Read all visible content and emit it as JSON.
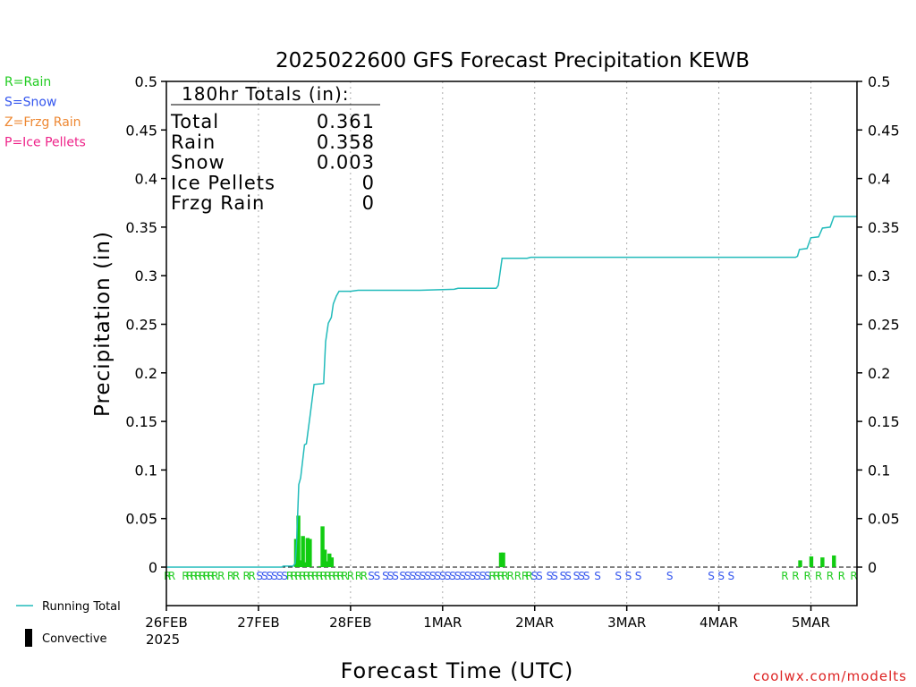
{
  "chart_data": {
    "type": "bar",
    "title": "2025022600 GFS Forecast Precipitation KEWB",
    "xlabel": "Forecast Time (UTC)",
    "ylabel": "Precipitation (in)",
    "ylim": [
      0,
      0.5
    ],
    "y_ticks": [
      "0",
      "0.05",
      "0.1",
      "0.15",
      "0.2",
      "0.25",
      "0.3",
      "0.35",
      "0.4",
      "0.45",
      "0.5"
    ],
    "x_range_hours": [
      0,
      180
    ],
    "x_ticks": [
      {
        "hour": 0,
        "label": "26FEB"
      },
      {
        "hour": 24,
        "label": "27FEB"
      },
      {
        "hour": 48,
        "label": "28FEB"
      },
      {
        "hour": 72,
        "label": "1MAR"
      },
      {
        "hour": 96,
        "label": "2MAR"
      },
      {
        "hour": 120,
        "label": "3MAR"
      },
      {
        "hour": 144,
        "label": "4MAR"
      },
      {
        "hour": 168,
        "label": "5MAR"
      }
    ],
    "year_label": "2025",
    "grid": true,
    "legend_position": "left",
    "ptype_legend": [
      {
        "text": "R=Rain",
        "color": "#22cc22"
      },
      {
        "text": "S=Snow",
        "color": "#3355ee"
      },
      {
        "text": "Z=Frzg Rain",
        "color": "#ee8833"
      },
      {
        "text": "P=Ice Pellets",
        "color": "#ee2288"
      }
    ],
    "series": [
      {
        "name": "Running Total",
        "type": "line",
        "color": "#22bbbb",
        "points": [
          [
            0,
            0
          ],
          [
            30,
            0
          ],
          [
            30.5,
            0.001
          ],
          [
            33,
            0.001
          ],
          [
            33.6,
            0.004
          ],
          [
            34,
            0.03
          ],
          [
            34.5,
            0.085
          ],
          [
            35,
            0.092
          ],
          [
            36,
            0.126
          ],
          [
            36.5,
            0.127
          ],
          [
            37.5,
            0.157
          ],
          [
            38.5,
            0.188
          ],
          [
            41,
            0.189
          ],
          [
            41.5,
            0.232
          ],
          [
            42.2,
            0.251
          ],
          [
            43,
            0.257
          ],
          [
            43.5,
            0.271
          ],
          [
            44.3,
            0.279
          ],
          [
            45,
            0.284
          ],
          [
            48,
            0.284
          ],
          [
            50,
            0.285
          ],
          [
            57,
            0.285
          ],
          [
            66,
            0.285
          ],
          [
            75,
            0.286
          ],
          [
            76,
            0.287
          ],
          [
            86,
            0.287
          ],
          [
            86.5,
            0.29
          ],
          [
            87.5,
            0.318
          ],
          [
            94,
            0.318
          ],
          [
            95,
            0.319
          ],
          [
            160,
            0.319
          ],
          [
            164,
            0.319
          ],
          [
            164.5,
            0.32
          ],
          [
            165,
            0.327
          ],
          [
            167,
            0.328
          ],
          [
            168,
            0.339
          ],
          [
            170,
            0.34
          ],
          [
            171,
            0.349
          ],
          [
            173,
            0.35
          ],
          [
            174,
            0.361
          ],
          [
            180,
            0.361
          ]
        ]
      },
      {
        "name": "Convective",
        "type": "bar",
        "color": "#000000",
        "values": []
      },
      {
        "name": "Precipitation",
        "type": "bar",
        "color": "#11cc11",
        "bars": [
          {
            "hour": 33.8,
            "value": 0.029
          },
          {
            "hour": 34.4,
            "value": 0.053
          },
          {
            "hour": 35.0,
            "value": 0.007
          },
          {
            "hour": 35.6,
            "value": 0.032
          },
          {
            "hour": 36.2,
            "value": 0.005
          },
          {
            "hour": 36.8,
            "value": 0.03
          },
          {
            "hour": 37.4,
            "value": 0.029
          },
          {
            "hour": 40.1,
            "value": 0.001
          },
          {
            "hour": 40.7,
            "value": 0.042
          },
          {
            "hour": 41.3,
            "value": 0.018
          },
          {
            "hour": 41.9,
            "value": 0.006
          },
          {
            "hour": 42.5,
            "value": 0.014
          },
          {
            "hour": 43.1,
            "value": 0.01
          },
          {
            "hour": 87.2,
            "value": 0.015
          },
          {
            "hour": 87.8,
            "value": 0.015
          },
          {
            "hour": 165.2,
            "value": 0.007
          },
          {
            "hour": 168.1,
            "value": 0.011
          },
          {
            "hour": 171.0,
            "value": 0.01
          },
          {
            "hour": 174.0,
            "value": 0.012
          }
        ]
      }
    ],
    "ptype_markers": [
      {
        "hour": 0.3,
        "type": "R"
      },
      {
        "hour": 1.4,
        "type": "R"
      },
      {
        "hour": 5.0,
        "type": "R"
      },
      {
        "hour": 6.1,
        "type": "R"
      },
      {
        "hour": 7.2,
        "type": "R"
      },
      {
        "hour": 8.3,
        "type": "R"
      },
      {
        "hour": 9.4,
        "type": "R"
      },
      {
        "hour": 10.5,
        "type": "R"
      },
      {
        "hour": 11.6,
        "type": "R"
      },
      {
        "hour": 12.7,
        "type": "R"
      },
      {
        "hour": 14.3,
        "type": "R"
      },
      {
        "hour": 16.8,
        "type": "R"
      },
      {
        "hour": 18.2,
        "type": "R"
      },
      {
        "hour": 20.9,
        "type": "R"
      },
      {
        "hour": 22.3,
        "type": "R"
      },
      {
        "hour": 24.3,
        "type": "S"
      },
      {
        "hour": 25.6,
        "type": "S"
      },
      {
        "hour": 26.9,
        "type": "S"
      },
      {
        "hour": 28.2,
        "type": "S"
      },
      {
        "hour": 29.5,
        "type": "S"
      },
      {
        "hour": 30.8,
        "type": "S"
      },
      {
        "hour": 32.2,
        "type": "R"
      },
      {
        "hour": 33.3,
        "type": "R"
      },
      {
        "hour": 34.4,
        "type": "R"
      },
      {
        "hour": 35.5,
        "type": "R"
      },
      {
        "hour": 36.6,
        "type": "R"
      },
      {
        "hour": 37.7,
        "type": "R"
      },
      {
        "hour": 38.8,
        "type": "R"
      },
      {
        "hour": 39.9,
        "type": "R"
      },
      {
        "hour": 41.0,
        "type": "R"
      },
      {
        "hour": 42.1,
        "type": "R"
      },
      {
        "hour": 43.2,
        "type": "R"
      },
      {
        "hour": 44.3,
        "type": "R"
      },
      {
        "hour": 45.4,
        "type": "R"
      },
      {
        "hour": 46.5,
        "type": "R"
      },
      {
        "hour": 48.0,
        "type": "R"
      },
      {
        "hour": 50.1,
        "type": "R"
      },
      {
        "hour": 51.5,
        "type": "R"
      },
      {
        "hour": 53.4,
        "type": "S"
      },
      {
        "hour": 54.9,
        "type": "S"
      },
      {
        "hour": 57.1,
        "type": "S"
      },
      {
        "hour": 58.4,
        "type": "S"
      },
      {
        "hour": 59.7,
        "type": "S"
      },
      {
        "hour": 61.6,
        "type": "S"
      },
      {
        "hour": 62.9,
        "type": "S"
      },
      {
        "hour": 64.2,
        "type": "S"
      },
      {
        "hour": 65.5,
        "type": "S"
      },
      {
        "hour": 66.8,
        "type": "S"
      },
      {
        "hour": 68.1,
        "type": "S"
      },
      {
        "hour": 69.4,
        "type": "S"
      },
      {
        "hour": 70.7,
        "type": "S"
      },
      {
        "hour": 72.0,
        "type": "S"
      },
      {
        "hour": 73.3,
        "type": "S"
      },
      {
        "hour": 74.6,
        "type": "S"
      },
      {
        "hour": 75.9,
        "type": "S"
      },
      {
        "hour": 77.2,
        "type": "S"
      },
      {
        "hour": 78.5,
        "type": "S"
      },
      {
        "hour": 79.8,
        "type": "S"
      },
      {
        "hour": 81.1,
        "type": "S"
      },
      {
        "hour": 82.4,
        "type": "S"
      },
      {
        "hour": 83.7,
        "type": "S"
      },
      {
        "hour": 85.0,
        "type": "R"
      },
      {
        "hour": 86.1,
        "type": "R"
      },
      {
        "hour": 87.2,
        "type": "R"
      },
      {
        "hour": 88.3,
        "type": "R"
      },
      {
        "hour": 89.7,
        "type": "R"
      },
      {
        "hour": 91.6,
        "type": "R"
      },
      {
        "hour": 93.5,
        "type": "R"
      },
      {
        "hour": 94.6,
        "type": "R"
      },
      {
        "hour": 95.9,
        "type": "S"
      },
      {
        "hour": 97.2,
        "type": "S"
      },
      {
        "hour": 99.9,
        "type": "S"
      },
      {
        "hour": 101.2,
        "type": "S"
      },
      {
        "hour": 103.4,
        "type": "S"
      },
      {
        "hour": 104.7,
        "type": "S"
      },
      {
        "hour": 106.9,
        "type": "S"
      },
      {
        "hour": 108.2,
        "type": "S"
      },
      {
        "hour": 109.5,
        "type": "S"
      },
      {
        "hour": 112.4,
        "type": "S"
      },
      {
        "hour": 117.8,
        "type": "S"
      },
      {
        "hour": 120.4,
        "type": "S"
      },
      {
        "hour": 123.0,
        "type": "S"
      },
      {
        "hour": 131.2,
        "type": "S"
      },
      {
        "hour": 142.0,
        "type": "S"
      },
      {
        "hour": 144.6,
        "type": "S"
      },
      {
        "hour": 147.2,
        "type": "S"
      },
      {
        "hour": 161.2,
        "type": "R"
      },
      {
        "hour": 164.0,
        "type": "R"
      },
      {
        "hour": 167.1,
        "type": "R"
      },
      {
        "hour": 170.0,
        "type": "R"
      },
      {
        "hour": 173.0,
        "type": "R"
      },
      {
        "hour": 176.0,
        "type": "R"
      },
      {
        "hour": 179.2,
        "type": "R"
      }
    ],
    "totals_box": {
      "heading": "180hr Totals (in):",
      "rows": [
        {
          "label": "Total",
          "value": "0.361"
        },
        {
          "label": "Rain",
          "value": "0.358"
        },
        {
          "label": "Snow",
          "value": "0.003"
        },
        {
          "label": "Ice Pellets",
          "value": "0"
        },
        {
          "label": "Frzg Rain",
          "value": "0"
        }
      ]
    }
  },
  "footer": {
    "credit": "coolwx.com/modelts"
  }
}
